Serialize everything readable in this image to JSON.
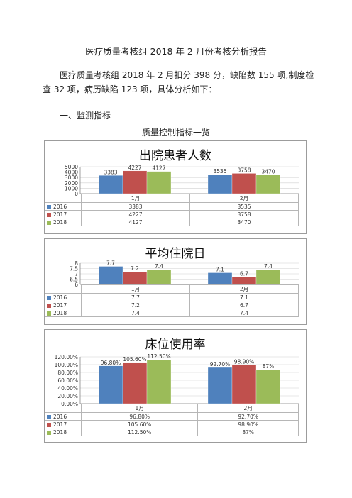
{
  "document": {
    "title": "医疗质量考核组 2018 年 2 月份考核分析报告",
    "paragraph": "医疗质量考核组 2018 年 2 月扣分 398 分，缺陷数 155 项,制度检查 32 项，病历缺陷 123 项，具体分析如下：",
    "section_heading": "一、监测指标",
    "sub_title": "质量控制指标一览"
  },
  "colors": {
    "2016": "#4f81bd",
    "2017": "#c0504d",
    "2018": "#9bbb59"
  },
  "chart_data": [
    {
      "type": "bar",
      "title": "出院患者人数",
      "categories": [
        "1月",
        "2月"
      ],
      "yticks": [
        "5000",
        "4000",
        "3000",
        "2000",
        "1000",
        "0"
      ],
      "ylim": [
        0,
        5000
      ],
      "series": [
        {
          "name": "2016",
          "values": [
            3383,
            3535
          ],
          "labels": [
            "3383",
            "3535"
          ]
        },
        {
          "name": "2017",
          "values": [
            4227,
            3758
          ],
          "labels": [
            "4227",
            "3758"
          ]
        },
        {
          "name": "2018",
          "values": [
            4127,
            3470
          ],
          "labels": [
            "4127",
            "3470"
          ]
        }
      ]
    },
    {
      "type": "bar",
      "title": "平均住院日",
      "categories": [
        "1月",
        "2月"
      ],
      "yticks": [
        "8",
        "7.5",
        "7",
        "6.5",
        "6"
      ],
      "ylim": [
        6,
        8
      ],
      "series": [
        {
          "name": "2016",
          "values": [
            7.7,
            7.1
          ],
          "labels": [
            "7.7",
            "7.1"
          ]
        },
        {
          "name": "2017",
          "values": [
            7.2,
            6.7
          ],
          "labels": [
            "7.2",
            "6.7"
          ]
        },
        {
          "name": "2018",
          "values": [
            7.4,
            7.4
          ],
          "labels": [
            "7.4",
            "7.4"
          ]
        }
      ]
    },
    {
      "type": "bar",
      "title": "床位使用率",
      "categories": [
        "1月",
        "2月"
      ],
      "yticks": [
        "120.00%",
        "100.00%",
        "80.00%",
        "60.00%",
        "40.00%",
        "20.00%",
        "0.00%"
      ],
      "ylim": [
        0,
        120
      ],
      "series": [
        {
          "name": "2016",
          "values": [
            96.8,
            92.7
          ],
          "labels": [
            "96.80%",
            "92.70%"
          ]
        },
        {
          "name": "2017",
          "values": [
            105.6,
            98.9
          ],
          "labels": [
            "105.60%",
            "98.90%"
          ]
        },
        {
          "name": "2018",
          "values": [
            112.5,
            87
          ],
          "labels": [
            "112.50%",
            "87%"
          ]
        }
      ]
    }
  ]
}
